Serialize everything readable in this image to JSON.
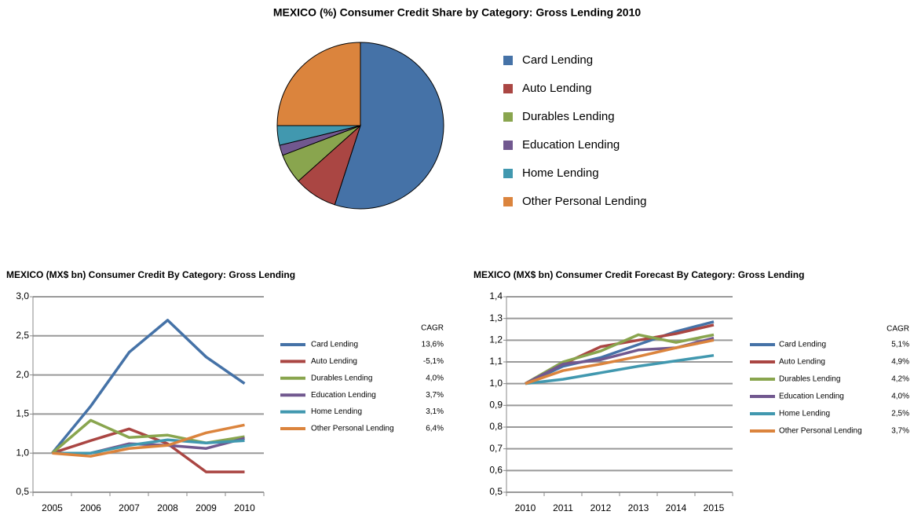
{
  "chart_data": [
    {
      "type": "pie",
      "title": "MEXICO (%) Consumer Credit Share by Category: Gross Lending 2010",
      "categories": [
        "Card Lending",
        "Auto Lending",
        "Durables Lending",
        "Education Lending",
        "Home Lending",
        "Other Personal Lending"
      ],
      "values": [
        55,
        8.4,
        5.8,
        2,
        3.8,
        25
      ],
      "colors": [
        "#4572a7",
        "#aa4643",
        "#89a54e",
        "#71588f",
        "#4198af",
        "#db843d"
      ]
    },
    {
      "type": "line",
      "title": "MEXICO (MX$ bn) Consumer Credit By Category: Gross Lending",
      "categories": [
        "2005",
        "2006",
        "2007",
        "2008",
        "2009",
        "2010"
      ],
      "ylim": [
        0.5,
        3.0
      ],
      "yticks": [
        {
          "value": 0.5,
          "label": "0,5"
        },
        {
          "value": 1.0,
          "label": "1,0"
        },
        {
          "value": 1.5,
          "label": "1,5"
        },
        {
          "value": 2.0,
          "label": "2,0"
        },
        {
          "value": 2.5,
          "label": "2,5"
        },
        {
          "value": 3.0,
          "label": "3,0"
        }
      ],
      "grid": true,
      "cagr_header": "CAGR",
      "series": [
        {
          "name": "Card Lending",
          "color": "#4572a7",
          "cagr": "13,6%",
          "values": [
            1.0,
            1.6,
            2.29,
            2.7,
            2.23,
            1.89
          ]
        },
        {
          "name": "Auto Lending",
          "color": "#aa4643",
          "cagr": "-5,1%",
          "values": [
            1.0,
            1.16,
            1.31,
            1.12,
            0.76,
            0.76
          ]
        },
        {
          "name": "Durables Lending",
          "color": "#89a54e",
          "cagr": "4,0%",
          "values": [
            1.0,
            1.42,
            1.2,
            1.23,
            1.13,
            1.21
          ]
        },
        {
          "name": "Education Lending",
          "color": "#71588f",
          "cagr": "3,7%",
          "values": [
            1.0,
            1.0,
            1.12,
            1.1,
            1.06,
            1.19
          ]
        },
        {
          "name": "Home Lending",
          "color": "#4198af",
          "cagr": "3,1%",
          "values": [
            1.0,
            1.0,
            1.1,
            1.17,
            1.13,
            1.16
          ]
        },
        {
          "name": "Other Personal Lending",
          "color": "#db843d",
          "cagr": "6,4%",
          "values": [
            1.0,
            0.96,
            1.06,
            1.1,
            1.26,
            1.36
          ]
        }
      ]
    },
    {
      "type": "line",
      "title": "MEXICO (MX$ bn) Consumer Credit Forecast By Category: Gross Lending",
      "categories": [
        "2010",
        "2011",
        "2012",
        "2013",
        "2014",
        "2015"
      ],
      "ylim": [
        0.5,
        1.4
      ],
      "yticks": [
        {
          "value": 0.5,
          "label": "0,5"
        },
        {
          "value": 0.6,
          "label": "0,6"
        },
        {
          "value": 0.7,
          "label": "0,7"
        },
        {
          "value": 0.8,
          "label": "0,8"
        },
        {
          "value": 0.9,
          "label": "0,9"
        },
        {
          "value": 1.0,
          "label": "1,0"
        },
        {
          "value": 1.1,
          "label": "1,1"
        },
        {
          "value": 1.2,
          "label": "1,2"
        },
        {
          "value": 1.3,
          "label": "1,3"
        },
        {
          "value": 1.4,
          "label": "1,4"
        }
      ],
      "grid": true,
      "cagr_header": "CAGR",
      "series": [
        {
          "name": "Card Lending",
          "color": "#4572a7",
          "cagr": "5,1%",
          "values": [
            1.0,
            1.08,
            1.12,
            1.18,
            1.24,
            1.285
          ]
        },
        {
          "name": "Auto Lending",
          "color": "#aa4643",
          "cagr": "4,9%",
          "values": [
            1.0,
            1.09,
            1.17,
            1.2,
            1.23,
            1.27
          ]
        },
        {
          "name": "Durables Lending",
          "color": "#89a54e",
          "cagr": "4,2%",
          "values": [
            1.0,
            1.1,
            1.15,
            1.225,
            1.19,
            1.225
          ]
        },
        {
          "name": "Education Lending",
          "color": "#71588f",
          "cagr": "4,0%",
          "values": [
            1.0,
            1.09,
            1.11,
            1.155,
            1.165,
            1.21
          ]
        },
        {
          "name": "Home Lending",
          "color": "#4198af",
          "cagr": "2,5%",
          "values": [
            1.0,
            1.02,
            1.05,
            1.08,
            1.105,
            1.13
          ]
        },
        {
          "name": "Other Personal Lending",
          "color": "#db843d",
          "cagr": "3,7%",
          "values": [
            1.0,
            1.06,
            1.09,
            1.125,
            1.165,
            1.2
          ]
        }
      ]
    }
  ]
}
